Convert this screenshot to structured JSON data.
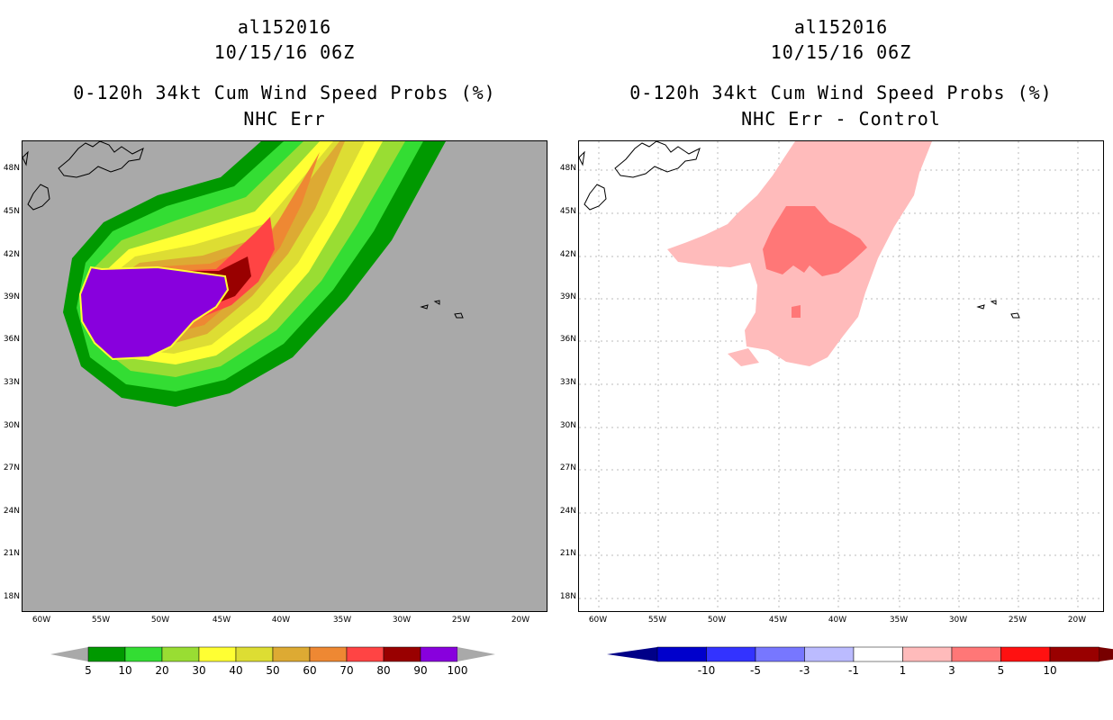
{
  "left_panel": {
    "title_lines": [
      "al152016",
      "10/15/16 06Z",
      "0-120h 34kt Cum Wind Speed Probs (%)",
      "NHC Err"
    ],
    "background_color": "#a9a9a9",
    "colorbar": {
      "colors": [
        "#009900",
        "#33dd33",
        "#99dd33",
        "#ffff33",
        "#dddd33",
        "#ddaa33",
        "#ee8833",
        "#ff4444",
        "#990000",
        "#8800dd"
      ],
      "labels": [
        "5",
        "10",
        "20",
        "30",
        "40",
        "50",
        "60",
        "70",
        "80",
        "90",
        "100"
      ]
    }
  },
  "right_panel": {
    "title_lines": [
      "al152016",
      "10/15/16 06Z",
      "0-120h 34kt Cum Wind Speed Probs (%)",
      "NHC Err - Control"
    ],
    "background_color": "#ffffff",
    "colorbar": {
      "colors": [
        "#0000cc",
        "#3333ff",
        "#7777ff",
        "#bbbbff",
        "#ffffff",
        "#ffbbbb",
        "#ff7777",
        "#ff1111",
        "#990000"
      ],
      "labels": [
        "-10",
        "-5",
        "-3",
        "-1",
        "1",
        "3",
        "5",
        "10"
      ]
    }
  },
  "axes": {
    "lat_labels": [
      "48N",
      "45N",
      "42N",
      "39N",
      "36N",
      "33N",
      "30N",
      "27N",
      "24N",
      "21N",
      "18N"
    ],
    "lon_labels": [
      "60W",
      "55W",
      "50W",
      "45W",
      "40W",
      "35W",
      "30W",
      "25W",
      "20W"
    ]
  }
}
